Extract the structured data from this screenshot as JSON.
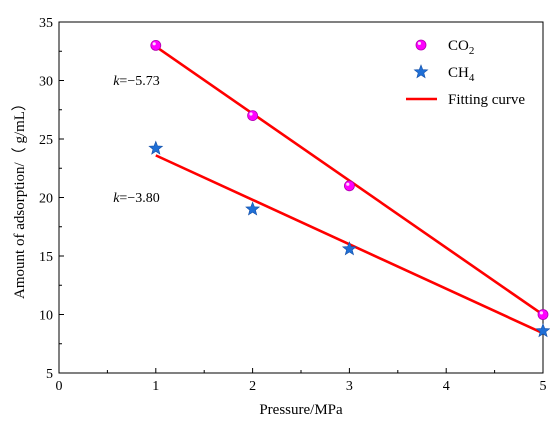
{
  "chart_data": {
    "type": "scatter",
    "xlabel": "Pressure/MPa",
    "ylabel": "Amount of adsorption/（ g/mL）",
    "xlim": [
      0,
      5
    ],
    "ylim": [
      5,
      35
    ],
    "xticks": [
      0,
      1,
      2,
      3,
      4,
      5
    ],
    "xtick_labels": [
      "0",
      "1",
      "2",
      "3",
      "4",
      "5"
    ],
    "yticks": [
      5,
      10,
      15,
      20,
      25,
      30,
      35
    ],
    "ytick_labels": [
      "5",
      "10",
      "15",
      "20",
      "25",
      "30",
      "35"
    ],
    "legend_position": "top-right",
    "grid": false,
    "series": [
      {
        "name": "CO2",
        "legend_label": {
          "base": "CO",
          "sub": "2"
        },
        "marker": "circle",
        "color": "#ff00ff",
        "x": [
          1,
          2,
          3,
          5
        ],
        "y": [
          33.0,
          27.0,
          21.0,
          10.0
        ]
      },
      {
        "name": "CH4",
        "legend_label": {
          "base": "CH",
          "sub": "4"
        },
        "marker": "star",
        "color": "#1f6fd6",
        "x": [
          1,
          2,
          3,
          5
        ],
        "y": [
          24.2,
          19.0,
          15.6,
          8.6
        ]
      }
    ],
    "fits": [
      {
        "label": "Fitting curve",
        "color": "#ff0000",
        "series": "CO2",
        "x": [
          1,
          5
        ],
        "y": [
          32.9,
          9.98
        ]
      },
      {
        "label": "Fitting curve",
        "color": "#ff0000",
        "series": "CH4",
        "x": [
          1,
          5
        ],
        "y": [
          23.6,
          8.4
        ]
      }
    ],
    "legend": [
      {
        "label": "CO2",
        "base": "CO",
        "sub": "2",
        "marker": "circle"
      },
      {
        "label": "CH4",
        "base": "CH",
        "sub": "4",
        "marker": "star"
      },
      {
        "label": "Fitting curve",
        "marker": "line"
      }
    ],
    "annotations": [
      {
        "k": "k",
        "value": "=−5.73",
        "at_x": 0.56,
        "at_y": 29.6
      },
      {
        "k": "k",
        "value": "=−3.80",
        "at_x": 0.56,
        "at_y": 19.6
      }
    ]
  }
}
